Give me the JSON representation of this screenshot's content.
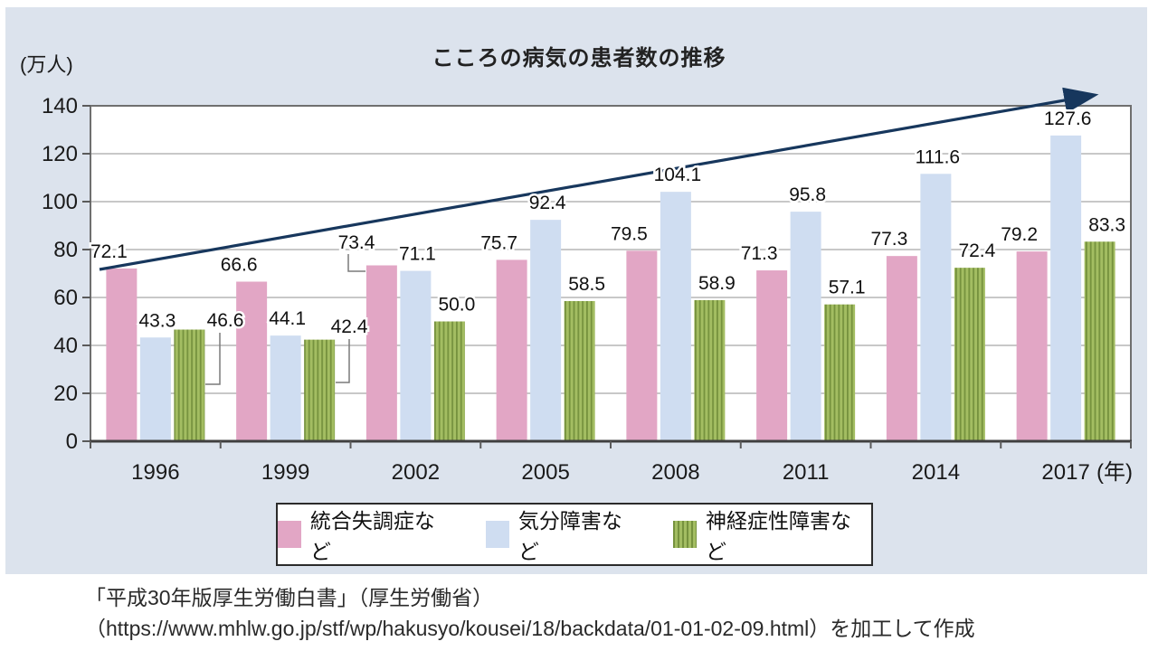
{
  "chart_data": {
    "type": "bar",
    "title": "こころの病気の患者数の推移",
    "ylabel": "(万人)",
    "xlabel": "(年)",
    "ylim": [
      0,
      140
    ],
    "ytick_step": 20,
    "grid": true,
    "legend_position": "bottom",
    "categories": [
      "1996",
      "1999",
      "2002",
      "2005",
      "2008",
      "2011",
      "2014",
      "2017"
    ],
    "series": [
      {
        "name": "統合失調症など",
        "color": "#e2a6c5",
        "values": [
          72.1,
          66.6,
          73.4,
          75.7,
          79.5,
          71.3,
          77.3,
          79.2
        ]
      },
      {
        "name": "気分障害など",
        "color": "#cfddf1",
        "values": [
          43.3,
          44.1,
          71.1,
          92.4,
          104.1,
          95.8,
          111.6,
          127.6
        ]
      },
      {
        "name": "神経症性障害など",
        "color": "#a3bd62",
        "pattern": "vertical-stripes",
        "stripe_color": "#76923e",
        "values": [
          46.6,
          42.4,
          50.0,
          58.5,
          58.9,
          57.1,
          72.4,
          83.3
        ]
      }
    ],
    "annotations": {
      "trend_arrow": {
        "color": "#17375d",
        "from_category": "1996",
        "to_category": "2017"
      },
      "callout_labels": [
        {
          "series": 2,
          "category": "1996",
          "value": 46.6
        },
        {
          "series": 2,
          "category": "1999",
          "value": 42.4
        },
        {
          "series": 0,
          "category": "2002",
          "value": 73.4
        }
      ]
    },
    "panel_background": "#dce3ed",
    "plot_background": "#ffffff",
    "gridline_color": "#a8a8a8",
    "axis_color": "#3f3f3f"
  },
  "source": {
    "line1": "「平成30年版厚生労働白書」（厚生労働省）",
    "line2": "（https://www.mhlw.go.jp/stf/wp/hakusyo/kousei/18/backdata/01-01-02-09.html）を加工して作成"
  }
}
